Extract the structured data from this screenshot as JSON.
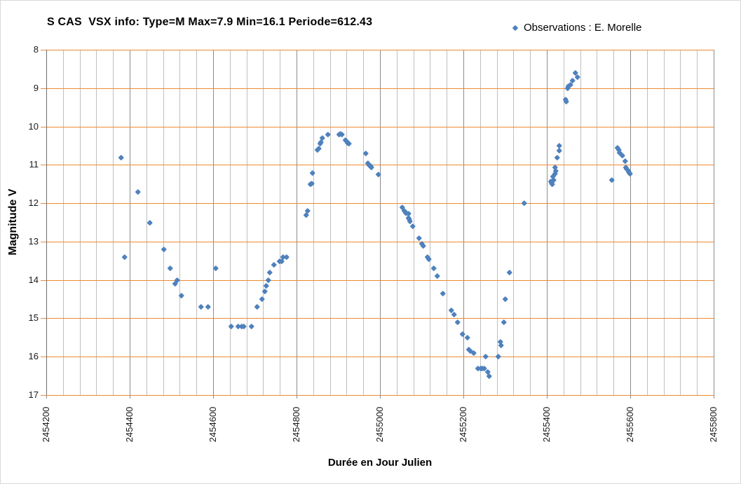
{
  "chart_data": {
    "type": "scatter",
    "title": "S CAS  VSX info: Type=M Max=7.9 Min=16.1 Periode=612.43",
    "xlabel": "Durée en Jour Julien",
    "ylabel": "Magnitude V",
    "legend_label": "Observations : E. Morelle",
    "legend_position": "top-right",
    "xlim": [
      2454200,
      2455800
    ],
    "ylim": [
      8,
      17
    ],
    "y_axis_inverted_magnitude": true,
    "x_ticks": [
      2454200,
      2454400,
      2454600,
      2454800,
      2455000,
      2455200,
      2455400,
      2455600,
      2455800
    ],
    "y_ticks": [
      8,
      9,
      10,
      11,
      12,
      13,
      14,
      15,
      16,
      17
    ],
    "x_minor_step": 40,
    "x_major_step": 200,
    "grid": true,
    "colors": {
      "marker": "#4F81BD",
      "h_gridline": "#ED8B33",
      "v_gridline_minor": "#BFBFBF",
      "v_gridline_major": "#8C8C8C",
      "y_axis_line": "#6E6E6E",
      "x_tick_stub": "#8C8C8C"
    },
    "series": [
      {
        "name": "Observations : E. Morelle",
        "marker": "diamond",
        "color": "#4F81BD",
        "points": [
          [
            2454380,
            10.8
          ],
          [
            2454388,
            13.4
          ],
          [
            2454420,
            11.7
          ],
          [
            2454449,
            12.5
          ],
          [
            2454482,
            13.2
          ],
          [
            2454497,
            13.7
          ],
          [
            2454509,
            14.1
          ],
          [
            2454514,
            14.0
          ],
          [
            2454524,
            14.4
          ],
          [
            2454571,
            14.7
          ],
          [
            2454588,
            14.7
          ],
          [
            2454607,
            13.7
          ],
          [
            2454644,
            15.2
          ],
          [
            2454660,
            15.2
          ],
          [
            2454669,
            15.2
          ],
          [
            2454674,
            15.2
          ],
          [
            2454692,
            15.2
          ],
          [
            2454706,
            14.7
          ],
          [
            2454718,
            14.5
          ],
          [
            2454724,
            14.3
          ],
          [
            2454728,
            14.15
          ],
          [
            2454733,
            14.0
          ],
          [
            2454735,
            13.8
          ],
          [
            2454746,
            13.6
          ],
          [
            2454760,
            13.5
          ],
          [
            2454765,
            13.5
          ],
          [
            2454768,
            13.4
          ],
          [
            2454776,
            13.4
          ],
          [
            2454823,
            12.3
          ],
          [
            2454827,
            12.2
          ],
          [
            2454834,
            11.5
          ],
          [
            2454836,
            11.48
          ],
          [
            2454838,
            11.2
          ],
          [
            2454850,
            10.6
          ],
          [
            2454854,
            10.57
          ],
          [
            2454857,
            10.45
          ],
          [
            2454859,
            10.4
          ],
          [
            2454862,
            10.3
          ],
          [
            2454876,
            10.2
          ],
          [
            2454902,
            10.2
          ],
          [
            2454906,
            10.18
          ],
          [
            2454908,
            10.2
          ],
          [
            2454918,
            10.35
          ],
          [
            2454920,
            10.38
          ],
          [
            2454923,
            10.42
          ],
          [
            2454926,
            10.45
          ],
          [
            2454966,
            10.7
          ],
          [
            2454971,
            10.95
          ],
          [
            2454975,
            11.0
          ],
          [
            2454978,
            11.03
          ],
          [
            2454980,
            11.06
          ],
          [
            2454997,
            11.25
          ],
          [
            2455054,
            12.1
          ],
          [
            2455059,
            12.2
          ],
          [
            2455062,
            12.24
          ],
          [
            2455064,
            12.25
          ],
          [
            2455069,
            12.26
          ],
          [
            2455069,
            12.38
          ],
          [
            2455071,
            12.42
          ],
          [
            2455072,
            12.47
          ],
          [
            2455079,
            12.6
          ],
          [
            2455094,
            12.9
          ],
          [
            2455101,
            13.05
          ],
          [
            2455103,
            13.1
          ],
          [
            2455114,
            13.4
          ],
          [
            2455118,
            13.45
          ],
          [
            2455129,
            13.7
          ],
          [
            2455138,
            13.9
          ],
          [
            2455151,
            14.35
          ],
          [
            2455171,
            14.78
          ],
          [
            2455178,
            14.9
          ],
          [
            2455186,
            15.1
          ],
          [
            2455198,
            15.4
          ],
          [
            2455210,
            15.5
          ],
          [
            2455213,
            15.8
          ],
          [
            2455216,
            15.85
          ],
          [
            2455225,
            15.9
          ],
          [
            2455235,
            16.3
          ],
          [
            2455241,
            16.3
          ],
          [
            2455245,
            16.3
          ],
          [
            2455250,
            16.3
          ],
          [
            2455254,
            16.0
          ],
          [
            2455258,
            16.4
          ],
          [
            2455262,
            16.5
          ],
          [
            2455284,
            16.0
          ],
          [
            2455289,
            15.6
          ],
          [
            2455291,
            15.7
          ],
          [
            2455297,
            15.1
          ],
          [
            2455301,
            14.5
          ],
          [
            2455311,
            13.8
          ],
          [
            2455346,
            12.0
          ],
          [
            2455410,
            11.42
          ],
          [
            2455412,
            11.46
          ],
          [
            2455413,
            11.5
          ],
          [
            2455415,
            11.3
          ],
          [
            2455417,
            11.4
          ],
          [
            2455420,
            11.07
          ],
          [
            2455420,
            11.22
          ],
          [
            2455422,
            11.15
          ],
          [
            2455424,
            10.8
          ],
          [
            2455429,
            10.5
          ],
          [
            2455429,
            10.62
          ],
          [
            2455445,
            9.3
          ],
          [
            2455447,
            9.35
          ],
          [
            2455450,
            9.0
          ],
          [
            2455452,
            8.95
          ],
          [
            2455457,
            8.9
          ],
          [
            2455462,
            8.8
          ],
          [
            2455469,
            8.6
          ],
          [
            2455474,
            8.7
          ],
          [
            2455556,
            11.4
          ],
          [
            2455570,
            10.56
          ],
          [
            2455572,
            10.6
          ],
          [
            2455575,
            10.67
          ],
          [
            2455581,
            10.75
          ],
          [
            2455588,
            10.9
          ],
          [
            2455590,
            11.07
          ],
          [
            2455592,
            11.1
          ],
          [
            2455594,
            11.13
          ],
          [
            2455596,
            11.17
          ],
          [
            2455598,
            11.2
          ],
          [
            2455599,
            11.22
          ]
        ]
      }
    ]
  }
}
